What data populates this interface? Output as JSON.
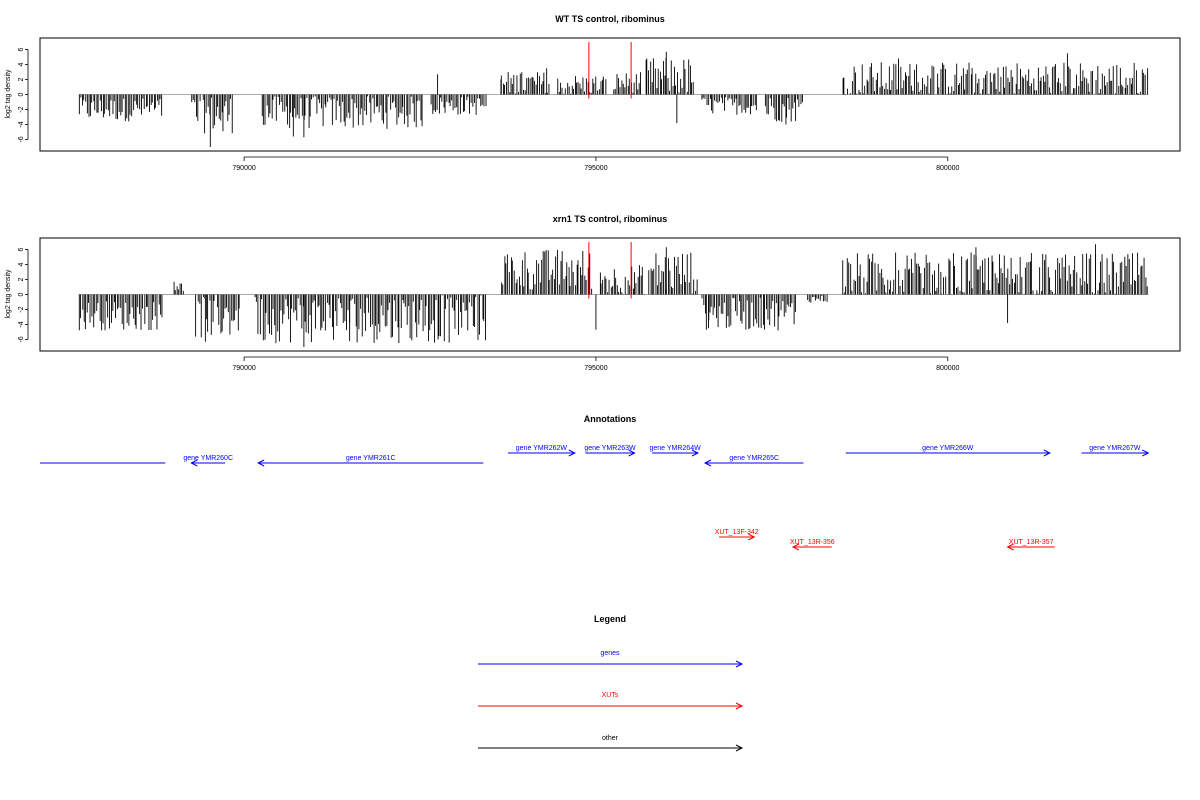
{
  "panels": [
    {
      "title": "WT TS control, ribominus",
      "ylabel": "log2 tag density",
      "yticks": [
        -6,
        -4,
        -2,
        0,
        2,
        4,
        6
      ],
      "xticks": [
        790000,
        795000,
        800000
      ]
    },
    {
      "title": "xrn1 TS control, ribominus",
      "ylabel": "log2 tag density",
      "yticks": [
        -6,
        -4,
        -2,
        0,
        2,
        4,
        6
      ],
      "xticks": [
        790000,
        795000,
        800000
      ]
    }
  ],
  "annotations_title": "Annotations",
  "legend_title": "Legend",
  "legend": [
    {
      "label": "genes",
      "color": "#0000ff"
    },
    {
      "label": "XUTs",
      "color": "#ff0000"
    },
    {
      "label": "other",
      "color": "#000000"
    }
  ],
  "genes": [
    {
      "label": "",
      "start": 787100,
      "end": 788880,
      "strand": "-"
    },
    {
      "label": "gene YMR260C",
      "start": 789250,
      "end": 789730,
      "strand": "-"
    },
    {
      "label": "gene YMR261C",
      "start": 790200,
      "end": 793400,
      "strand": "-"
    },
    {
      "label": "gene YMR262W",
      "start": 793750,
      "end": 794700,
      "strand": "+"
    },
    {
      "label": "gene YMR263W",
      "start": 794850,
      "end": 795550,
      "strand": "+"
    },
    {
      "label": "gene YMR264W",
      "start": 795800,
      "end": 796450,
      "strand": "+"
    },
    {
      "label": "gene YMR265C",
      "start": 796550,
      "end": 797950,
      "strand": "-"
    },
    {
      "label": "gene YMR266W",
      "start": 798550,
      "end": 801450,
      "strand": "+"
    },
    {
      "label": "gene YMR267W",
      "start": 801900,
      "end": 802850,
      "strand": "+"
    }
  ],
  "xuts": [
    {
      "label": "XUT_13F-342",
      "start": 796750,
      "end": 797250,
      "strand": "+"
    },
    {
      "label": "XUT_13R-356",
      "start": 797800,
      "end": 798350,
      "strand": "-"
    },
    {
      "label": "XUT_13R-357",
      "start": 800850,
      "end": 801520,
      "strand": "-"
    },
    {
      "label": "",
      "start": 0,
      "end": 0,
      "strand": ""
    }
  ],
  "chart_data": [
    {
      "type": "bar",
      "title": "WT TS control, ribominus",
      "xlabel": "",
      "ylabel": "log2 tag density",
      "xlim": [
        787100,
        803300
      ],
      "ylim": [
        -7,
        7
      ],
      "baseline": 0,
      "vlines": [
        {
          "x": 794900,
          "color": "#ff0000"
        },
        {
          "x": 795500,
          "color": "#ff0000"
        }
      ],
      "segments": [
        {
          "start": 787650,
          "end": 788850,
          "mean": -2.0,
          "amp": 1.6
        },
        {
          "start": 789250,
          "end": 789850,
          "mean": -2.6,
          "amp": 2.6
        },
        {
          "start": 790250,
          "end": 792550,
          "mean": -2.4,
          "amp": 2.2
        },
        {
          "start": 792650,
          "end": 793450,
          "mean": -1.5,
          "amp": 1.3
        },
        {
          "start": 793650,
          "end": 794350,
          "mean": 1.5,
          "amp": 1.6
        },
        {
          "start": 794450,
          "end": 795150,
          "mean": 1.3,
          "amp": 1.4
        },
        {
          "start": 795250,
          "end": 795650,
          "mean": 1.6,
          "amp": 1.4
        },
        {
          "start": 795700,
          "end": 796400,
          "mean": 2.4,
          "amp": 2.6
        },
        {
          "start": 796500,
          "end": 797300,
          "mean": -1.5,
          "amp": 1.2
        },
        {
          "start": 797400,
          "end": 797950,
          "mean": -1.9,
          "amp": 1.8
        },
        {
          "start": 798500,
          "end": 802850,
          "mean": 2.1,
          "amp": 2.3
        }
      ],
      "extremes": [
        {
          "x": 789520,
          "y": -7.0
        },
        {
          "x": 789700,
          "y": -4.9
        },
        {
          "x": 790700,
          "y": -5.6
        },
        {
          "x": 790850,
          "y": -5.7
        },
        {
          "x": 792750,
          "y": 2.7
        },
        {
          "x": 793650,
          "y": 2.0
        },
        {
          "x": 794300,
          "y": 3.5
        },
        {
          "x": 796000,
          "y": 5.7
        },
        {
          "x": 796150,
          "y": -3.8
        },
        {
          "x": 797700,
          "y": -4.0
        },
        {
          "x": 801700,
          "y": 5.5
        },
        {
          "x": 799300,
          "y": 4.8
        }
      ]
    },
    {
      "type": "bar",
      "title": "xrn1 TS control, ribominus",
      "xlabel": "",
      "ylabel": "log2 tag density",
      "xlim": [
        787100,
        803300
      ],
      "ylim": [
        -7,
        7
      ],
      "baseline": 0,
      "vlines": [
        {
          "x": 794900,
          "color": "#ff0000"
        },
        {
          "x": 795500,
          "color": "#ff0000"
        }
      ],
      "segments": [
        {
          "start": 787650,
          "end": 788850,
          "mean": -2.8,
          "amp": 2.0
        },
        {
          "start": 789000,
          "end": 789150,
          "mean": 1.5,
          "amp": 1.4
        },
        {
          "start": 789300,
          "end": 789950,
          "mean": -2.9,
          "amp": 3.0
        },
        {
          "start": 790150,
          "end": 793450,
          "mean": -3.2,
          "amp": 3.3
        },
        {
          "start": 793650,
          "end": 794950,
          "mean": 3.3,
          "amp": 2.8
        },
        {
          "start": 795050,
          "end": 795700,
          "mean": 2.0,
          "amp": 2.0
        },
        {
          "start": 795750,
          "end": 796450,
          "mean": 3.0,
          "amp": 3.0
        },
        {
          "start": 796500,
          "end": 797850,
          "mean": -2.6,
          "amp": 2.2
        },
        {
          "start": 798000,
          "end": 798300,
          "mean": -0.6,
          "amp": 0.5
        },
        {
          "start": 798500,
          "end": 802850,
          "mean": 2.6,
          "amp": 3.0
        }
      ],
      "extremes": [
        {
          "x": 789450,
          "y": -6.3
        },
        {
          "x": 790850,
          "y": -7.0
        },
        {
          "x": 791500,
          "y": -6.2
        },
        {
          "x": 795000,
          "y": -4.7
        },
        {
          "x": 796000,
          "y": 6.3
        },
        {
          "x": 796600,
          "y": -4.5
        },
        {
          "x": 800400,
          "y": 6.3
        },
        {
          "x": 802100,
          "y": 6.7
        },
        {
          "x": 800850,
          "y": -3.8
        }
      ]
    }
  ]
}
